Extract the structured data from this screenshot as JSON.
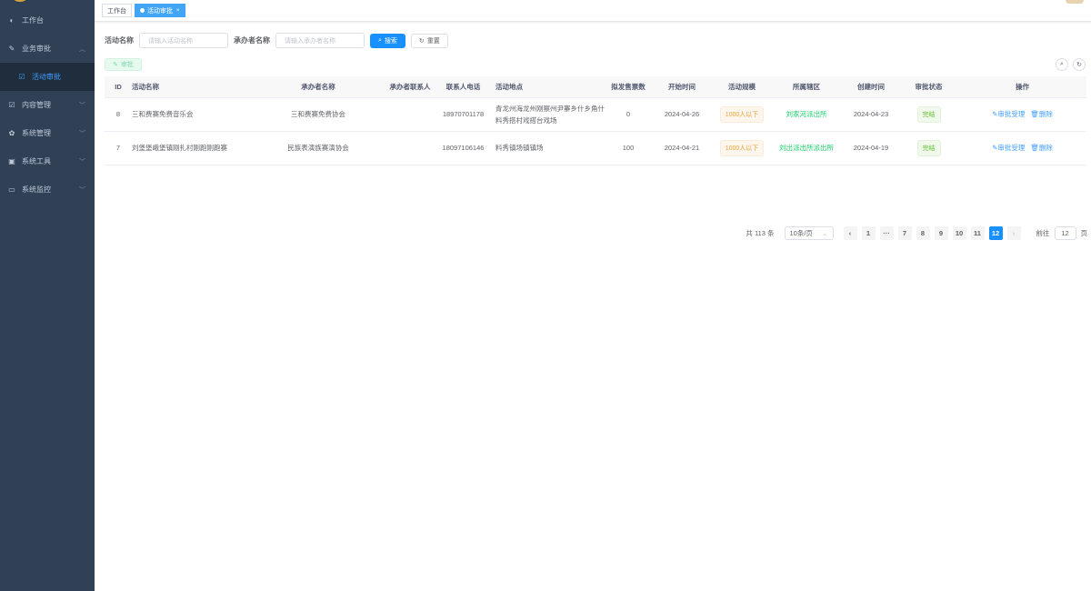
{
  "sidebar": {
    "items": [
      {
        "label": "工作台",
        "icon": "dashboard-icon"
      },
      {
        "label": "业务审批",
        "icon": "edit-icon",
        "expanded": true
      },
      {
        "label": "活动审批",
        "icon": "checkbox-icon",
        "active": true
      },
      {
        "label": "内容管理",
        "icon": "checkbox-icon"
      },
      {
        "label": "系统管理",
        "icon": "gear-icon"
      },
      {
        "label": "系统工具",
        "icon": "toolbox-icon"
      },
      {
        "label": "系统监控",
        "icon": "monitor-icon"
      }
    ]
  },
  "tags": {
    "home": "工作台",
    "current": "活动审批"
  },
  "search": {
    "activity_label": "活动名称",
    "activity_placeholder": "请输入活动名称",
    "organizer_label": "承办者名称",
    "organizer_placeholder": "请输入承办者名称",
    "search_btn": "搜索",
    "reset_btn": "重置"
  },
  "approve_btn": "审批",
  "table": {
    "headers": [
      "ID",
      "活动名称",
      "承办者名称",
      "承办者联系人",
      "联系人电话",
      "活动地点",
      "拟发售票数",
      "开始时间",
      "活动规模",
      "所属辖区",
      "创建时间",
      "审批状态",
      "操作"
    ],
    "rows": [
      {
        "id": "8",
        "name": "三和费赛免费音乐会",
        "org": "三和费赛免费协会",
        "contact": "",
        "phone": "18970701178",
        "place": "青龙州海龙州刚察州尹寨乡什乡角什料秀搭村戏搭台戏场",
        "tickets": "0",
        "start": "2024-04-26",
        "scale": "1000人以下",
        "district": "刘家河派出所",
        "created": "2024-04-23",
        "status": "完结"
      },
      {
        "id": "7",
        "name": "刘堡堡峨堡镇刚扎村刚跑刚跑赛",
        "org": "民族表演族赛演协会",
        "contact": "",
        "phone": "18097106146",
        "place": "料秀镇场镇镇场",
        "tickets": "100",
        "start": "2024-04-21",
        "scale": "1000人以下",
        "district": "刘出派出所派出所",
        "created": "2024-04-19",
        "status": "完结"
      }
    ],
    "op_approve": "审批受理",
    "op_delete": "删除"
  },
  "pagination": {
    "total": "共 113 条",
    "page_size": "10条/页",
    "pages": [
      "1",
      "···",
      "7",
      "8",
      "9",
      "10",
      "11",
      "12"
    ],
    "current": "12",
    "goto_label": "前往",
    "goto_value": "12",
    "page_unit": "页"
  }
}
